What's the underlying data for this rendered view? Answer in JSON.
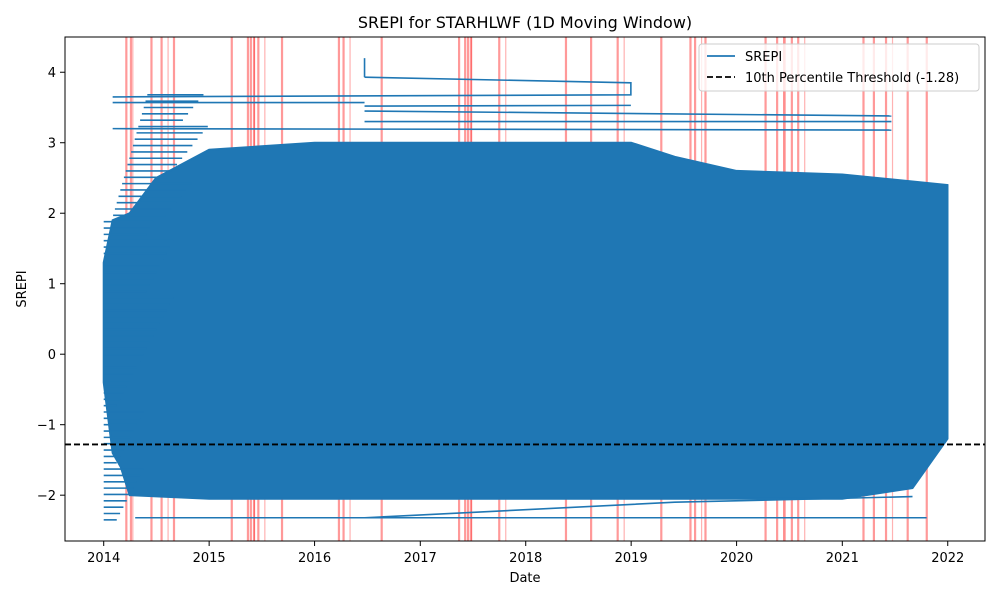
{
  "chart_data": {
    "type": "line",
    "title": "SREPI for STARHLWF (1D Moving Window)",
    "xlabel": "Date",
    "ylabel": "SREPI",
    "xlim": [
      "2013-08-20",
      "2022-05-10"
    ],
    "ylim": [
      -2.65,
      4.5
    ],
    "x_ticks": [
      "2014",
      "2015",
      "2016",
      "2017",
      "2018",
      "2019",
      "2020",
      "2021",
      "2022"
    ],
    "y_ticks": [
      -2,
      -1,
      0,
      1,
      2,
      3,
      4
    ],
    "grid": false,
    "legend_position": "top-right",
    "colors": {
      "series": "#1f77b4",
      "threshold": "#000000",
      "drought_span": "#ff0000"
    },
    "series": [
      {
        "name": "SREPI",
        "style": "solid",
        "data_envelope": {
          "x_start": "2014-01-01",
          "x_end": "2021-12-31",
          "dense_band_top": [
            [
              "2014-01-01",
              1.3
            ],
            [
              "2014-02-01",
              1.9
            ],
            [
              "2014-04-01",
              2.0
            ],
            [
              "2014-07-01",
              2.5
            ],
            [
              "2015-01-01",
              2.9
            ],
            [
              "2016-01-01",
              3.0
            ],
            [
              "2017-01-01",
              3.0
            ],
            [
              "2018-01-01",
              3.0
            ],
            [
              "2019-01-01",
              3.0
            ],
            [
              "2019-06-01",
              2.8
            ],
            [
              "2020-01-01",
              2.6
            ],
            [
              "2021-01-01",
              2.55
            ],
            [
              "2021-09-01",
              2.45
            ],
            [
              "2021-12-31",
              2.4
            ]
          ],
          "dense_band_bottom": [
            [
              "2014-01-01",
              -0.4
            ],
            [
              "2014-02-01",
              -1.4
            ],
            [
              "2014-03-01",
              -1.6
            ],
            [
              "2014-04-01",
              -2.0
            ],
            [
              "2015-01-01",
              -2.05
            ],
            [
              "2017-01-01",
              -2.05
            ],
            [
              "2019-01-01",
              -2.05
            ],
            [
              "2021-01-01",
              -2.05
            ],
            [
              "2021-09-01",
              -1.9
            ],
            [
              "2021-12-31",
              -1.2
            ]
          ],
          "peak": [
            "2016-06-22",
            4.2
          ],
          "minimum": [
            "2014-05-01",
            -2.32
          ],
          "outlier_segments": [
            [
              [
                "2016-06-22",
                3.93
              ],
              [
                "2018-12-31",
                3.85
              ],
              [
                "2018-12-31",
                3.68
              ],
              [
                "2014-02-01",
                3.65
              ]
            ],
            [
              [
                "2014-04-20",
                -2.32
              ],
              [
                "2021-10-20",
                -2.32
              ]
            ],
            [
              [
                "2016-06-22",
                -2.32
              ],
              [
                "2019-06-01",
                -2.1
              ],
              [
                "2021-09-01",
                -2.02
              ]
            ],
            [
              [
                "2014-02-01",
                3.57
              ],
              [
                "2016-06-22",
                3.57
              ]
            ],
            [
              [
                "2016-06-22",
                3.45
              ],
              [
                "2021-06-20",
                3.38
              ]
            ],
            [
              [
                "2016-06-22",
                3.3
              ],
              [
                "2021-06-20",
                3.3
              ]
            ],
            [
              [
                "2014-02-01",
                3.2
              ],
              [
                "2021-06-20",
                3.18
              ]
            ],
            [
              [
                "2016-06-22",
                3.52
              ],
              [
                "2018-12-31",
                3.53
              ]
            ]
          ]
        }
      },
      {
        "name": "10th Percentile Threshold (-1.28)",
        "style": "dashed",
        "y": -1.28
      }
    ],
    "drought_spans": [
      "2014-03-20",
      "2014-04-05",
      "2014-06-15",
      "2014-07-20",
      "2014-09-01",
      "2015-03-20",
      "2015-05-15",
      "2015-05-25",
      "2015-06-05",
      "2015-06-20",
      "2015-09-10",
      "2016-03-25",
      "2016-04-10",
      "2016-08-20",
      "2017-05-15",
      "2017-06-05",
      "2017-06-15",
      "2017-06-25",
      "2017-10-01",
      "2018-05-20",
      "2018-08-15",
      "2018-11-15",
      "2019-04-15",
      "2019-07-25",
      "2019-08-10",
      "2019-09-15",
      "2020-04-10",
      "2020-05-20",
      "2020-06-15",
      "2020-07-10",
      "2020-08-01",
      "2021-03-15",
      "2021-04-20",
      "2021-06-01",
      "2021-08-15",
      "2021-10-20"
    ]
  }
}
